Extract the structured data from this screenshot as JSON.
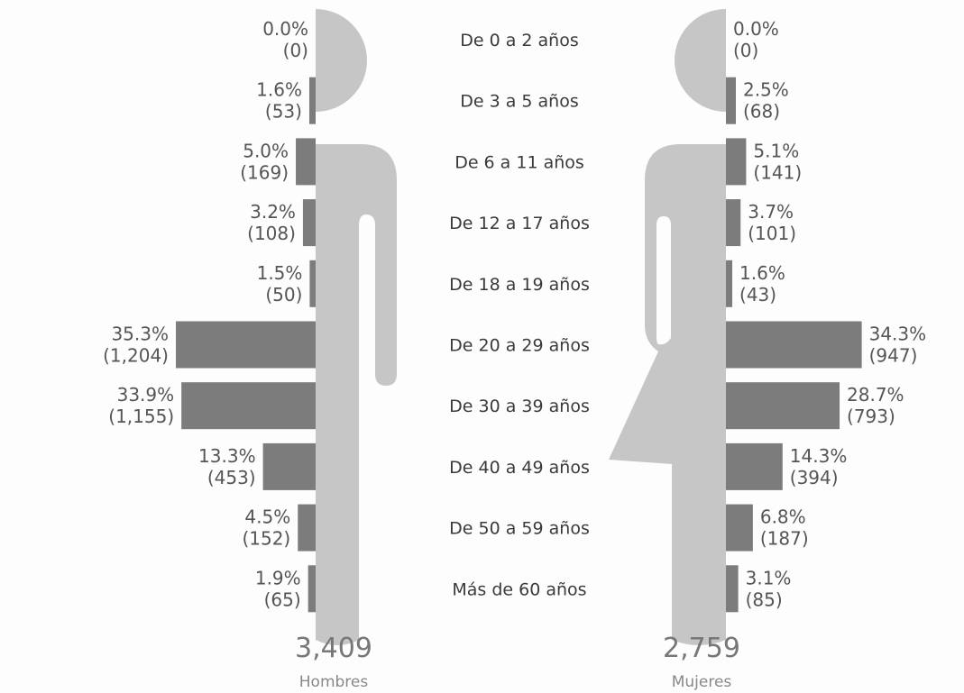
{
  "chart_data": {
    "type": "bar",
    "categories": [
      "De 0 a 2 años",
      "De 3 a 5 años",
      "De 6 a 11 años",
      "De 12 a 17 años",
      "De 18 a 19 años",
      "De 20 a 29 años",
      "De 30 a 39 años",
      "De 40 a 49 años",
      "De 50 a 59 años",
      "Más de 60 años"
    ],
    "series": [
      {
        "name": "Hombres",
        "values": [
          0,
          53,
          169,
          108,
          50,
          1204,
          1155,
          453,
          152,
          65
        ],
        "percent_labels": [
          "0.0%",
          "1.6%",
          "5.0%",
          "3.2%",
          "1.5%",
          "35.3%",
          "33.9%",
          "13.3%",
          "4.5%",
          "1.9%"
        ],
        "count_labels": [
          "(0)",
          "(53)",
          "(169)",
          "(108)",
          "(50)",
          "(1,204)",
          "(1,155)",
          "(453)",
          "(152)",
          "(65)"
        ],
        "total_text": "3,409",
        "percents": [
          0.0,
          1.6,
          5.0,
          3.2,
          1.5,
          35.3,
          33.9,
          13.3,
          4.5,
          1.9
        ]
      },
      {
        "name": "Mujeres",
        "values": [
          0,
          68,
          141,
          101,
          43,
          947,
          793,
          394,
          187,
          85
        ],
        "percent_labels": [
          "0.0%",
          "2.5%",
          "5.1%",
          "3.7%",
          "1.6%",
          "34.3%",
          "28.7%",
          "14.3%",
          "6.8%",
          "3.1%"
        ],
        "count_labels": [
          "(0)",
          "(68)",
          "(141)",
          "(101)",
          "(43)",
          "(947)",
          "(793)",
          "(394)",
          "(187)",
          "(85)"
        ],
        "total_text": "2,759",
        "percents": [
          0.0,
          2.5,
          5.1,
          3.7,
          1.6,
          34.3,
          28.7,
          14.3,
          6.8,
          3.1
        ]
      }
    ],
    "colors": {
      "bar": "#7c7c7c",
      "silhouette": "#c6c6c6"
    },
    "layout_note": "butterfly"
  }
}
